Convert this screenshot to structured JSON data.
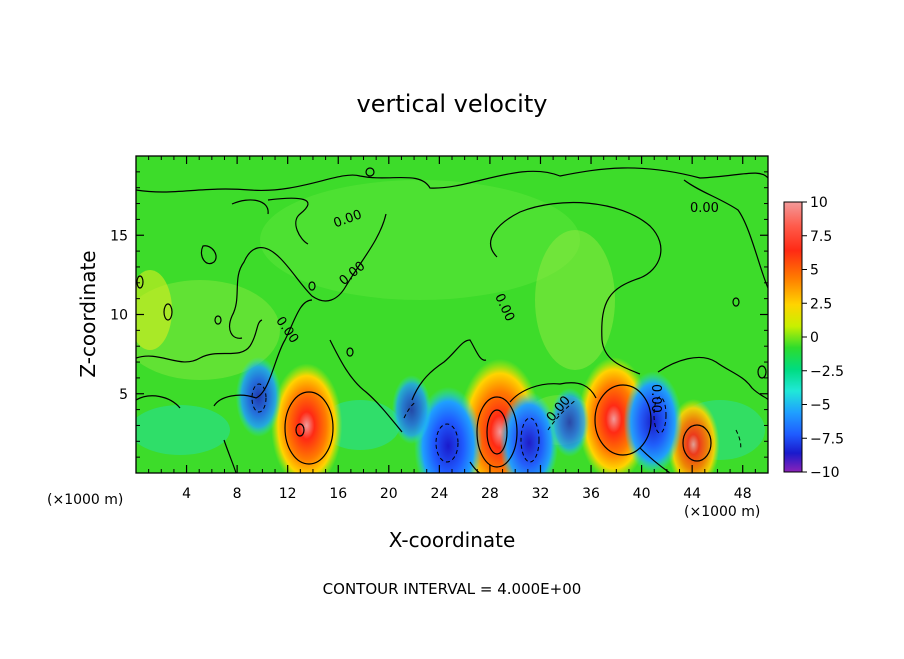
{
  "chart_data": {
    "type": "heatmap",
    "title": "vertical velocity",
    "xlabel": "X-coordinate",
    "ylabel": "Z-coordinate",
    "x_unit_label": "(×1000 m)",
    "y_unit_label": "(×1000 m)",
    "x_range": [
      0,
      50
    ],
    "y_range": [
      0,
      20
    ],
    "x_ticks": [
      4,
      8,
      12,
      16,
      20,
      24,
      28,
      32,
      36,
      40,
      44,
      48
    ],
    "y_ticks": [
      5,
      10,
      15
    ],
    "colorbar": {
      "ticks": [
        "10",
        "7.5",
        "5",
        "2.5",
        "0",
        "−2.5",
        "−5",
        "−7.5",
        "−10"
      ],
      "range": [
        -10,
        10
      ],
      "colors": [
        "#f29a9a",
        "#ff2a14",
        "#ff7a00",
        "#ffd400",
        "#c8f000",
        "#2ddc2d",
        "#00dc80",
        "#20e8d8",
        "#1f9fff",
        "#1f5cff",
        "#1a1acc",
        "#8b22b8"
      ]
    },
    "contour_labels": [
      "0.00",
      "0.00",
      "0.00",
      "0.00",
      "0.00",
      "0.00",
      "0.00"
    ],
    "features": [
      {
        "x": 13.5,
        "z": 3.0,
        "w": 8
      },
      {
        "x": 28.8,
        "z": 2.6,
        "w": 10
      },
      {
        "x": 37.8,
        "z": 3.4,
        "w": 8
      },
      {
        "x": 44.1,
        "z": 1.8,
        "w": 5
      },
      {
        "x": 24.7,
        "z": 1.7,
        "w": -7.5
      },
      {
        "x": 31.1,
        "z": 1.9,
        "w": -6
      },
      {
        "x": 40.9,
        "z": 3.2,
        "w": -6
      },
      {
        "x": 9.7,
        "z": 4.8,
        "w": -4
      },
      {
        "x": 21.8,
        "z": 4.0,
        "w": -3
      },
      {
        "x": 34.3,
        "z": 3.2,
        "w": -3
      }
    ],
    "footer": "CONTOUR INTERVAL = 4.000E+00"
  }
}
